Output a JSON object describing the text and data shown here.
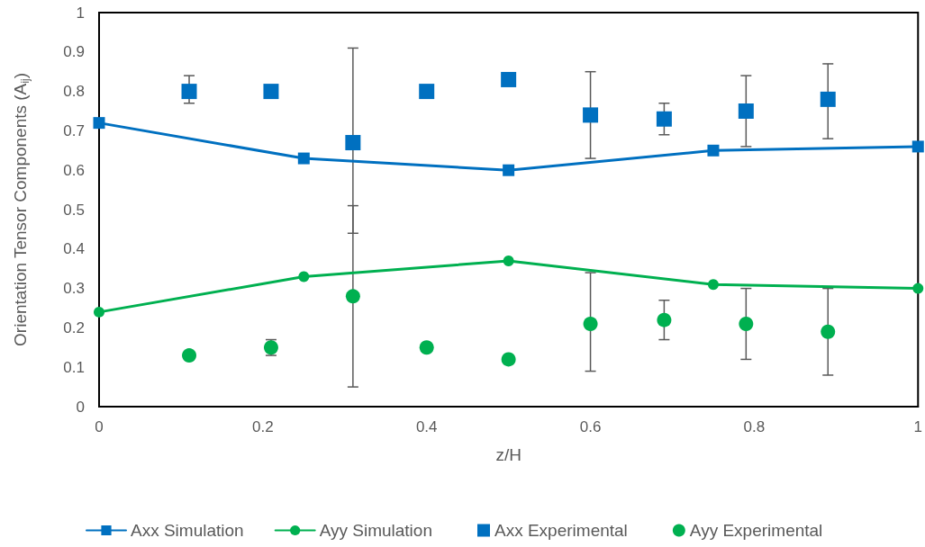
{
  "chart_data": {
    "type": "line",
    "xlabel": "z/H",
    "ylabel": "Orientation Tensor Components (A$_{ij}$)",
    "xlim": [
      0,
      1
    ],
    "xticks": [
      0,
      0.2,
      0.4,
      0.6,
      0.8,
      1
    ],
    "ylim": [
      0,
      1
    ],
    "yticks": [
      0,
      0.1,
      0.2,
      0.3,
      0.4,
      0.5,
      0.6,
      0.7,
      0.8,
      0.9,
      1
    ],
    "grid": false,
    "legend": "bottom",
    "series": [
      {
        "name": "Axx Simulation",
        "marker": "square",
        "color": "#0070c0",
        "x": [
          0,
          0.25,
          0.5,
          0.75,
          1
        ],
        "values": [
          0.72,
          0.63,
          0.6,
          0.65,
          0.66
        ]
      },
      {
        "name": "Ayy Simulation",
        "marker": "circle",
        "color": "#00b050",
        "x": [
          0,
          0.25,
          0.5,
          0.75,
          1
        ],
        "values": [
          0.24,
          0.33,
          0.37,
          0.31,
          0.3
        ]
      },
      {
        "name": "Axx Experimental",
        "type": "scatter",
        "marker": "square",
        "color": "#0070c0",
        "x": [
          0.11,
          0.21,
          0.31,
          0.4,
          0.5,
          0.6,
          0.69,
          0.79,
          0.89
        ],
        "values": [
          0.8,
          0.8,
          0.67,
          0.8,
          0.83,
          0.74,
          0.73,
          0.75,
          0.78
        ],
        "errors": [
          [
            0.77,
            0.84
          ],
          null,
          [
            0.44,
            0.91
          ],
          null,
          null,
          [
            0.63,
            0.85
          ],
          [
            0.69,
            0.77
          ],
          [
            0.66,
            0.84
          ],
          [
            0.68,
            0.87
          ]
        ]
      },
      {
        "name": "Ayy Experimental",
        "type": "scatter",
        "marker": "circle",
        "color": "#00b050",
        "x": [
          0.11,
          0.21,
          0.31,
          0.4,
          0.5,
          0.6,
          0.69,
          0.79,
          0.89
        ],
        "values": [
          0.13,
          0.15,
          0.28,
          0.15,
          0.12,
          0.21,
          0.22,
          0.21,
          0.19
        ],
        "errors": [
          null,
          [
            0.13,
            0.17
          ],
          [
            0.05,
            0.51
          ],
          null,
          null,
          [
            0.09,
            0.34
          ],
          [
            0.17,
            0.27
          ],
          [
            0.12,
            0.3
          ],
          [
            0.08,
            0.3
          ]
        ]
      }
    ]
  }
}
